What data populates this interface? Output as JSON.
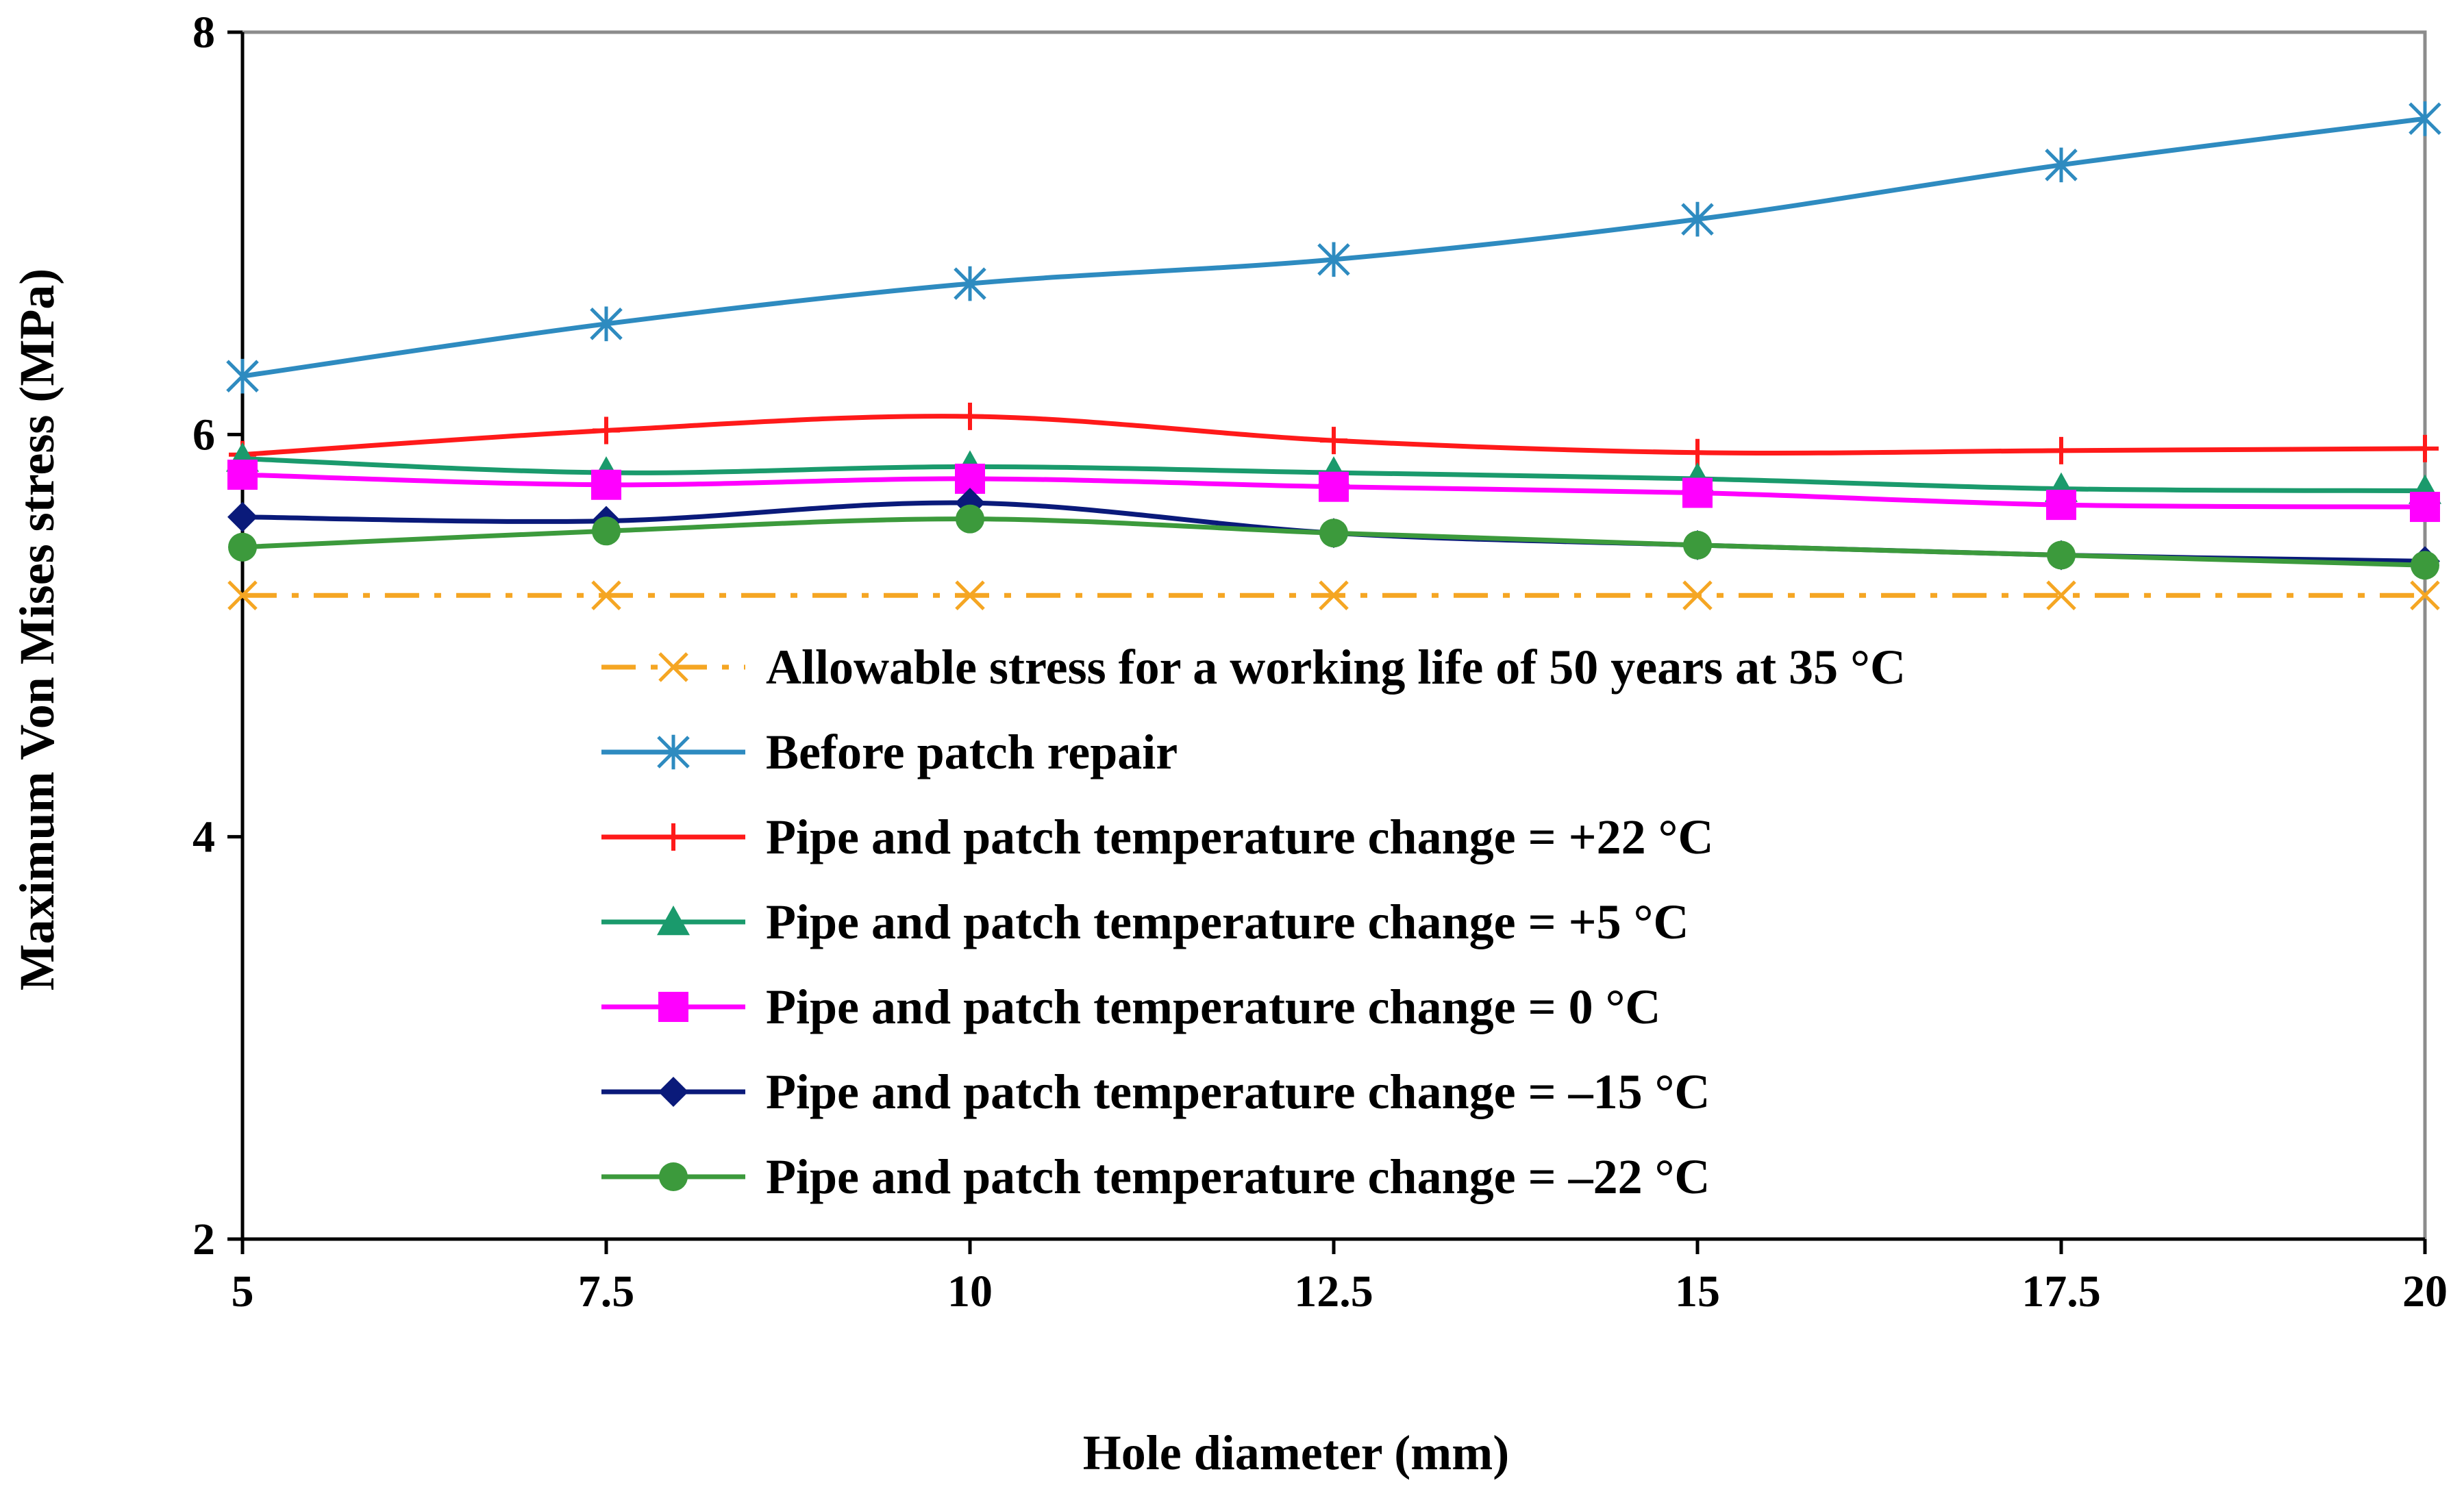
{
  "chart_data": {
    "type": "line",
    "title": "",
    "xlabel": "Hole diameter (mm)",
    "ylabel": "Maximum Von Mises stress (MPa)",
    "x": [
      5,
      7.5,
      10,
      12.5,
      15,
      17.5,
      20
    ],
    "x_tick_labels": [
      "5",
      "7.5",
      "10",
      "12.5",
      "15",
      "17.5",
      "20"
    ],
    "xlim": [
      5,
      20
    ],
    "ylim": [
      2,
      8
    ],
    "y_ticks": [
      2,
      4,
      6,
      8
    ],
    "y_tick_labels": [
      "2",
      "4",
      "6",
      "8"
    ],
    "grid": false,
    "legend_position": "center",
    "series": [
      {
        "name": "Allowable stress for a working life of 50 years at 35 °C",
        "values": [
          5.2,
          5.2,
          5.2,
          5.2,
          5.2,
          5.2,
          5.2
        ],
        "color": "#F5A623",
        "marker": "x",
        "dash": "dash-dot"
      },
      {
        "name": "Before patch repair",
        "values": [
          6.29,
          6.55,
          6.75,
          6.87,
          7.07,
          7.34,
          7.57
        ],
        "color": "#2E8BC0",
        "marker": "star",
        "dash": "solid"
      },
      {
        "name": "Pipe and patch temperature change = +22 °C",
        "values": [
          5.9,
          6.02,
          6.09,
          5.97,
          5.91,
          5.92,
          5.93
        ],
        "color": "#FF1A1A",
        "marker": "plus",
        "dash": "solid"
      },
      {
        "name": "Pipe and patch temperature change = +5 °C",
        "values": [
          5.88,
          5.81,
          5.84,
          5.81,
          5.78,
          5.73,
          5.72
        ],
        "color": "#1A9A6C",
        "marker": "triangle",
        "dash": "solid"
      },
      {
        "name": "Pipe and patch temperature change = 0 °C",
        "values": [
          5.8,
          5.75,
          5.78,
          5.74,
          5.71,
          5.65,
          5.64
        ],
        "color": "#FF00FF",
        "marker": "square",
        "dash": "solid"
      },
      {
        "name": "Pipe and patch temperature change = –15 °C",
        "values": [
          5.59,
          5.57,
          5.66,
          5.51,
          5.45,
          5.4,
          5.37
        ],
        "color": "#0A1A7A",
        "marker": "diamond",
        "dash": "solid"
      },
      {
        "name": "Pipe and patch temperature change = –22 °C",
        "values": [
          5.44,
          5.52,
          5.58,
          5.51,
          5.45,
          5.4,
          5.35
        ],
        "color": "#3C9A3C",
        "marker": "circle",
        "dash": "solid"
      }
    ]
  }
}
